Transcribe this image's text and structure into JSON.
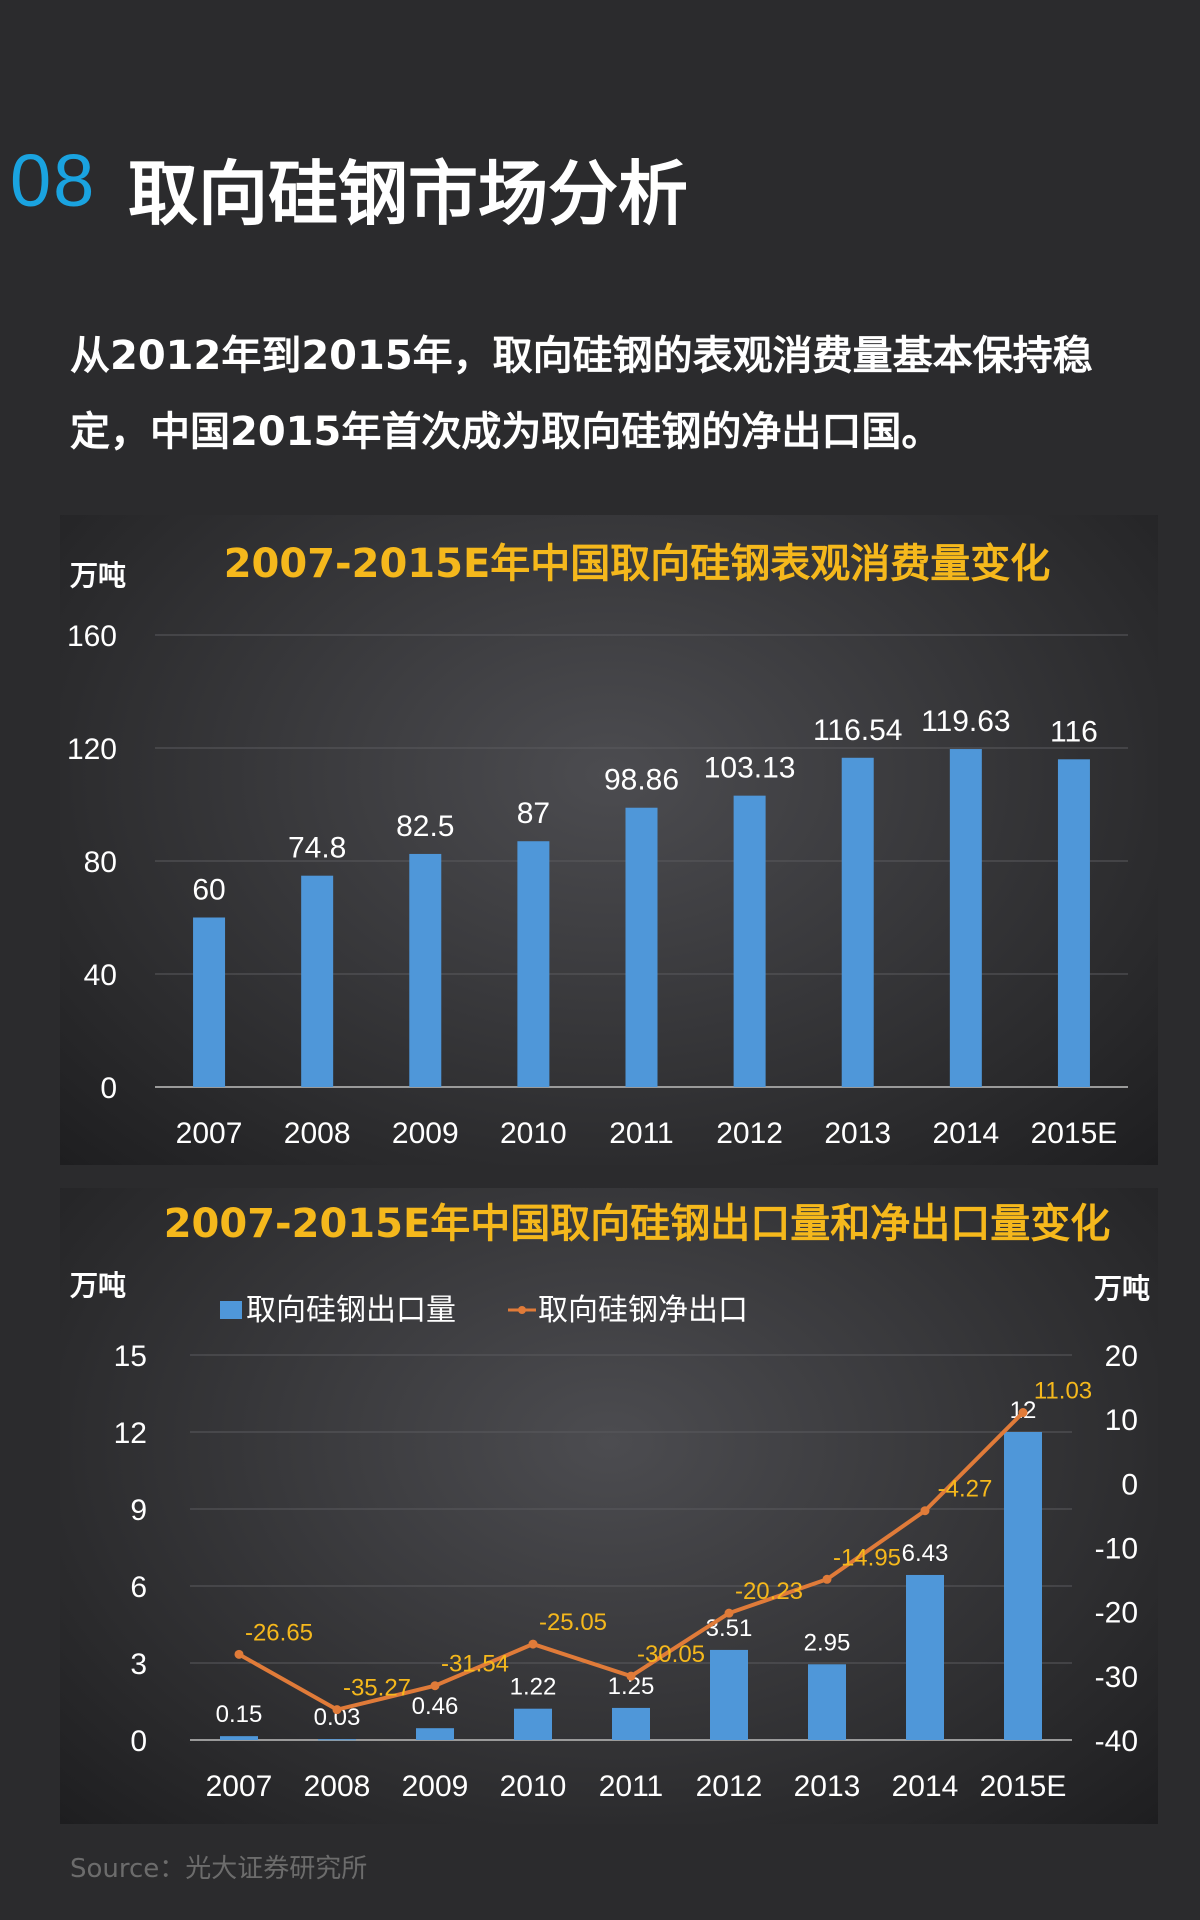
{
  "header": {
    "section_number": "08",
    "title": "取向硅钢市场分析"
  },
  "intro_text": "从2012年到2015年，取向硅钢的表观消费量基本保持稳定，中国2015年首次成为取向硅钢的净出口国。",
  "source": "Source：光大证券研究所",
  "colors": {
    "accent": "#1aa3e0",
    "chart_title": "#f5b81c",
    "bar": "#4f97d9",
    "line": "#e07b39",
    "line_label": "#f5b81c"
  },
  "chart_data": [
    {
      "type": "bar",
      "title": "2007-2015E年中国取向硅钢表观消费量变化",
      "ylabel": "万吨",
      "categories": [
        "2007",
        "2008",
        "2009",
        "2010",
        "2011",
        "2012",
        "2013",
        "2014",
        "2015E"
      ],
      "values": [
        60,
        74.8,
        82.5,
        87,
        98.86,
        103.13,
        116.54,
        119.63,
        116
      ],
      "value_labels": [
        "60",
        "74.8",
        "82.5",
        "87",
        "98.86",
        "103.13",
        "116.54",
        "119.63",
        "116"
      ],
      "ylim": [
        0,
        160
      ],
      "yticks": [
        "0",
        "40",
        "80",
        "120",
        "160"
      ],
      "grid": true
    },
    {
      "type": "bar+line",
      "title": "2007-2015E年中国取向硅钢出口量和净出口量变化",
      "ylabel_left": "万吨",
      "ylabel_right": "万吨",
      "legend_position": "top",
      "categories": [
        "2007",
        "2008",
        "2009",
        "2010",
        "2011",
        "2012",
        "2013",
        "2014",
        "2015E"
      ],
      "series": [
        {
          "name": "取向硅钢出口量",
          "type": "bar",
          "axis": "left",
          "values": [
            0.15,
            0.03,
            0.46,
            1.22,
            1.25,
            3.51,
            2.95,
            6.43,
            12
          ],
          "labels": [
            "0.15",
            "0.03",
            "0.46",
            "1.22",
            "1.25",
            "3.51",
            "2.95",
            "6.43",
            "12"
          ]
        },
        {
          "name": "取向硅钢净出口",
          "type": "line",
          "axis": "right",
          "values": [
            -26.65,
            -35.27,
            -31.54,
            -25.05,
            -30.05,
            -20.23,
            -14.95,
            -4.27,
            11.03
          ],
          "labels": [
            "-26.65",
            "-35.27",
            "-31.54",
            "-25.05",
            "-30.05",
            "-20.23",
            "-14.95",
            "-4.27",
            "11.03"
          ]
        }
      ],
      "ylim_left": [
        0,
        15
      ],
      "yticks_left": [
        "0",
        "3",
        "6",
        "9",
        "12",
        "15"
      ],
      "ylim_right": [
        -40,
        20
      ],
      "yticks_right": [
        "-40",
        "-30",
        "-20",
        "-10",
        "0",
        "10",
        "20"
      ],
      "grid": true
    }
  ]
}
